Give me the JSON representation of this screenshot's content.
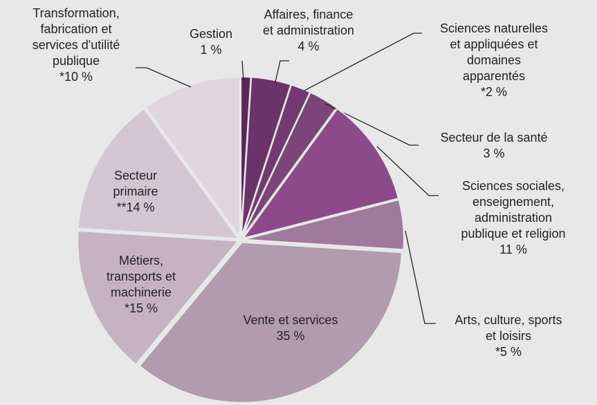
{
  "chart_data": {
    "type": "pie",
    "categories": [
      "Gestion",
      "Affaires, finance\net administration",
      "Sciences naturelles\net appliquées et\ndomaines\napparentés",
      "Secteur de la santé",
      "Sciences sociales,\nenseignement,\nadministration\npublique et religion",
      "Arts, culture, sports\net loisirs",
      "Vente et services",
      "Métiers,\ntransports et\nmachinerie",
      "Secteur\nprimaire",
      "Transformation,\nfabrication et\nservices d'utilité\npublique"
    ],
    "values": [
      1,
      4,
      2,
      3,
      11,
      5,
      35,
      15,
      14,
      10
    ],
    "value_labels": [
      "1 %",
      "4 %",
      "*2 %",
      "3 %",
      "11 %",
      "*5 %",
      "35 %",
      "*15 %",
      "**14 %",
      "*10 %"
    ],
    "colors": [
      "#5a2858",
      "#6a3468",
      "#723a70",
      "#7c4479",
      "#8d4a8b",
      "#9f7a9d",
      "#b19bae",
      "#c5b3c2",
      "#d3c6d1",
      "#e0d6de"
    ]
  }
}
